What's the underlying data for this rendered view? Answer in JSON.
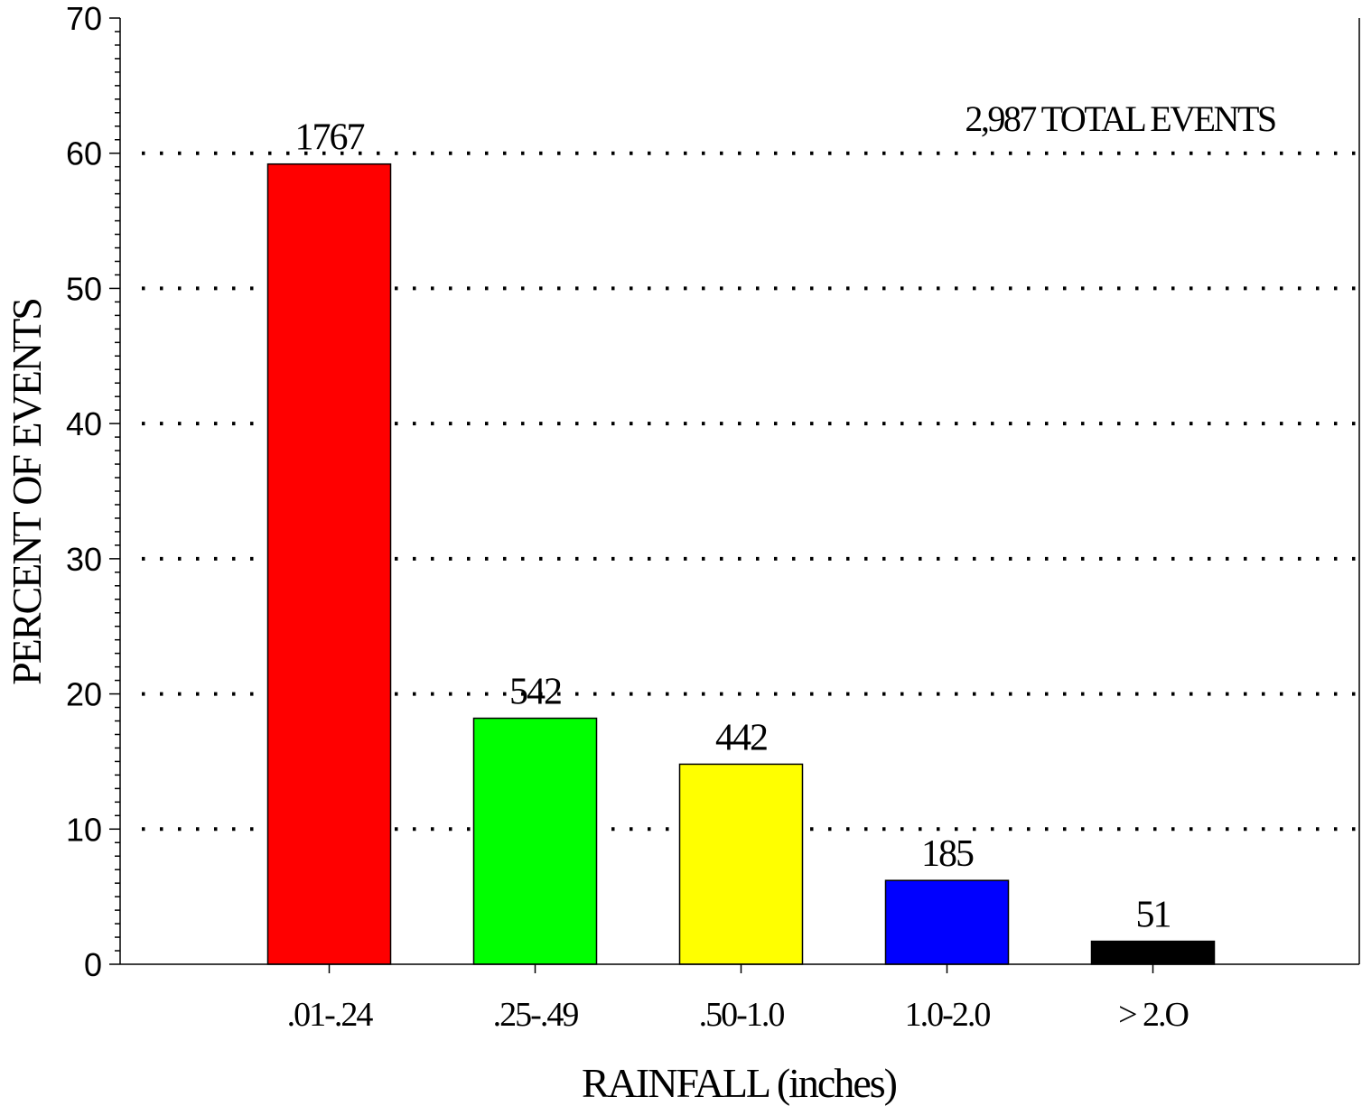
{
  "chart_data": {
    "type": "bar",
    "categories": [
      ".01-.24",
      ".25-.49",
      ".50-1.0",
      "1.0-2.0",
      "> 2.O"
    ],
    "values": [
      59.2,
      18.2,
      14.8,
      6.2,
      1.7
    ],
    "bar_labels": [
      "1767",
      "542",
      "442",
      "185",
      "51"
    ],
    "bar_colors": [
      "#ff0000",
      "#00ff00",
      "#ffff00",
      "#0000ff",
      "#000000"
    ],
    "title": "",
    "annotation": "2,987 TOTAL EVENTS",
    "xlabel": "RAINFALL (inches)",
    "ylabel": "PERCENT OF EVENTS",
    "ylim": [
      0,
      70
    ],
    "yticks": [
      0,
      10,
      20,
      30,
      40,
      50,
      60,
      70
    ],
    "gridlines": [
      10,
      20,
      30,
      40,
      50,
      60
    ],
    "grid_style": "dotted",
    "legend": "none"
  }
}
